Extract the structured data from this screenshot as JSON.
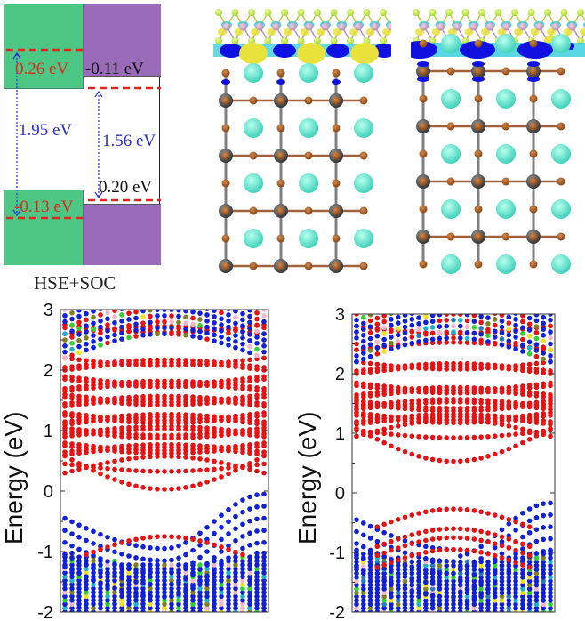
{
  "alignment": {
    "caption": "HSE+SOC",
    "colors": {
      "left": "#4dc784",
      "right": "#9a6bb8",
      "dash": "#e8231f",
      "arrow": "#2b2bd6"
    },
    "labels": {
      "left_cbm_offset": "0.26 eV",
      "right_cbm_offset": "-0.11 eV",
      "left_gap": "1.95 eV",
      "right_gap": "1.56 eV",
      "right_vbm_offset": "0.20 eV",
      "left_vbm_offset": "-0.13 eV"
    }
  },
  "structures": [
    {
      "name": "structure-left",
      "interface": "charge-density-difference",
      "colors": {
        "cation": "#3fd1b8",
        "anion": "#8b4513",
        "metal": "#555555",
        "accum": "#e8e23a",
        "deplete": "#22c9d8",
        "strong": "#1010e0",
        "top_layer": "#a8d830",
        "top_metal": "#b98fb0"
      }
    },
    {
      "name": "structure-right",
      "interface": "charge-density-difference",
      "colors": {
        "cation": "#3fd1b8",
        "anion": "#8b4513",
        "metal": "#555555",
        "accum": "#e8e23a",
        "deplete": "#22c9d8",
        "strong": "#1010e0",
        "top_layer": "#a8d830",
        "top_metal": "#b98fb0"
      }
    }
  ],
  "chart_data": [
    {
      "type": "scatter",
      "title": "",
      "xlabel": "",
      "ylabel": "Energy (eV)",
      "ylim": [
        -2,
        3
      ],
      "yticks": [
        "3",
        "2",
        "1",
        "0",
        "-1",
        "-2"
      ],
      "ytick_values": [
        3,
        2,
        1,
        0,
        -1,
        -2
      ],
      "grid": false,
      "cbm_min": 0.03,
      "vbm_max": -0.05,
      "conduction_bands_red": [
        0.03,
        0.3,
        0.45,
        0.6,
        0.75,
        0.9,
        1.0,
        1.1,
        1.25,
        1.4,
        1.55,
        1.65,
        1.85,
        2.0,
        2.2,
        2.6,
        2.75
      ],
      "valence_bands_red": [
        -0.75
      ],
      "valence_edge_blue": -0.05,
      "colors": [
        "#e81010",
        "#1020d8",
        "#20b0d0",
        "#f0e020",
        "#30d030",
        "#f2b8c8",
        "#808020"
      ]
    },
    {
      "type": "scatter",
      "title": "",
      "xlabel": "",
      "ylabel": "Energy (eV)",
      "ylim": [
        -2,
        3
      ],
      "yticks": [
        "3",
        "2",
        "1",
        "0",
        "-1",
        "-2"
      ],
      "ytick_values": [
        3,
        2,
        1,
        0,
        -1,
        -2
      ],
      "grid": false,
      "cbm_min": 0.53,
      "vbm_max": -0.27,
      "conduction_bands_red": [
        0.53,
        0.95,
        1.05,
        1.15,
        1.3,
        1.4,
        1.5,
        1.6,
        1.8,
        2.0,
        2.2,
        2.4,
        2.8
      ],
      "valence_bands_red": [
        -0.27,
        -0.6,
        -0.75,
        -0.95
      ],
      "valence_edge_blue": -0.17,
      "colors": [
        "#e81010",
        "#1020d8",
        "#20b0d0",
        "#f0e020",
        "#30d030",
        "#f2b8c8",
        "#808020",
        "#2a7ab8"
      ]
    }
  ]
}
